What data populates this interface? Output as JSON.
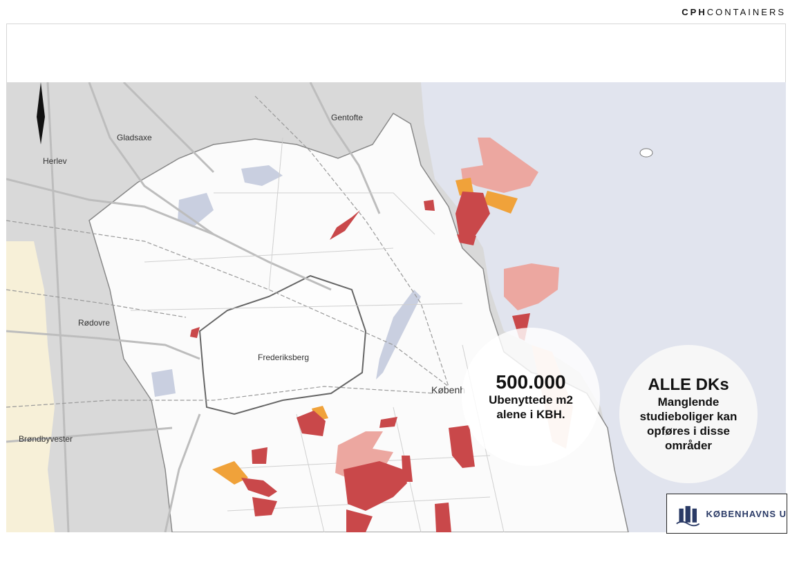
{
  "brand": {
    "bold": "CPH",
    "rest": "CONTAINERS"
  },
  "map": {
    "places": {
      "gentofte": "Gentofte",
      "gladsaxe": "Gladsaxe",
      "herlev": "Herlev",
      "rodovre": "Rødovre",
      "frederiksberg": "Frederiksberg",
      "kobenhavn": "Københ",
      "brondbyvester": "Brøndbyvester"
    },
    "colors": {
      "water": "#e1e4ee",
      "land": "#d9d9d9",
      "city": "#fbfbfb",
      "red": "#c9484a",
      "orange": "#f0a23a",
      "pink": "#eca7a0"
    }
  },
  "callout_left": {
    "value": "500.000",
    "text": "Ubenyttede m2 alene i KBH."
  },
  "callout_right": {
    "title": "ALLE DKs",
    "text": "Manglende studieboliger kan opføres i disse områder"
  },
  "logo": {
    "text": "KØBENHAVNS U",
    "icon": "crown-logo-icon"
  }
}
